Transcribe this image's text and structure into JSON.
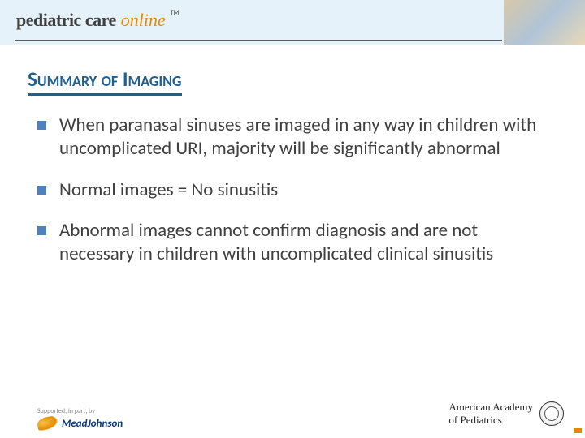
{
  "header": {
    "logo_part1": "pediatric care",
    "logo_part2": "online",
    "tm": "TM"
  },
  "title": "Summary of Imaging",
  "bullets": [
    "When paranasal sinuses are imaged in any way in children with uncomplicated URI, majority will be significantly abnormal",
    "Normal images = No sinusitis",
    "Abnormal images cannot confirm diagnosis and are not necessary in children with uncomplicated clinical sinusitis"
  ],
  "footer": {
    "sponsor_label": "Supported, in part, by",
    "sponsor_name": "MeadJohnson",
    "aap_line1": "American Academy",
    "aap_line2": "of Pediatrics"
  },
  "colors": {
    "header_bg": "#e6f2fa",
    "title_color": "#1f6091",
    "bullet_color": "#4f81bd",
    "text_color": "#3f3f3f",
    "accent_orange": "#e58a00"
  }
}
